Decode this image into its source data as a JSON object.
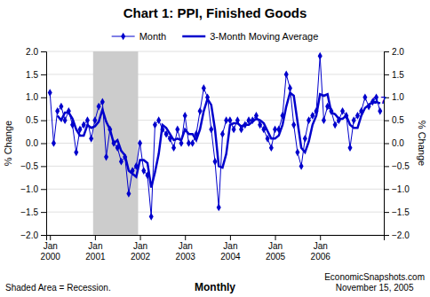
{
  "chart_data": {
    "type": "line",
    "title": "Chart 1: PPI, Finished Goods",
    "ylabel": "% Change",
    "y2label": "% Change",
    "annotation": "0.7",
    "notes": [
      "Shaded Area = Recession.",
      "Monthly",
      "EconomicSnapshots.com\nNovember 15, 2005"
    ],
    "categories": [
      "Jan\n2000",
      null,
      null,
      null,
      null,
      null,
      null,
      null,
      null,
      null,
      null,
      null,
      "Jan\n2001",
      null,
      null,
      null,
      null,
      null,
      null,
      null,
      null,
      null,
      null,
      null,
      "Jan\n2002",
      null,
      null,
      null,
      null,
      null,
      null,
      null,
      null,
      null,
      null,
      null,
      "Jan\n2003",
      null,
      null,
      null,
      null,
      null,
      null,
      null,
      null,
      null,
      null,
      null,
      "Jan\n2004",
      null,
      null,
      null,
      null,
      null,
      null,
      null,
      null,
      null,
      null,
      null,
      "Jan\n2005",
      null,
      null,
      null,
      null,
      null,
      null,
      null,
      null,
      null,
      null,
      null,
      "Jan\n2006",
      null,
      null,
      null,
      null,
      null,
      null,
      null,
      null,
      null,
      null,
      null,
      null,
      null,
      null,
      null,
      null
    ],
    "series": [
      {
        "name": "Month",
        "color": "#0000cc",
        "marker": "diamond",
        "values": [
          1.1,
          0.0,
          0.7,
          0.8,
          0.5,
          0.7,
          0.4,
          -0.2,
          0.3,
          0.4,
          0.5,
          0.1,
          0.5,
          0.8,
          0.9,
          -0.3,
          0.3,
          0.0,
          -0.1,
          -0.4,
          -0.3,
          -1.1,
          -0.6,
          -0.5,
          0.0,
          -0.6,
          -0.7,
          -1.6,
          0.4,
          0.5,
          0.3,
          0.2,
          0.1,
          -0.1,
          0.3,
          0.0,
          0.6,
          0.0,
          0.0,
          0.2,
          0.7,
          1.2,
          1.0,
          0.3,
          -0.4,
          -1.4,
          0.2,
          0.5,
          0.5,
          0.3,
          0.5,
          0.3,
          0.4,
          0.5,
          0.5,
          0.6,
          0.4,
          0.3,
          0.1,
          -0.1,
          0.3,
          0.3,
          0.6,
          1.5,
          1.2,
          0.4,
          -0.2,
          -0.5,
          0.1,
          0.5,
          0.6,
          0.7,
          1.9,
          0.5,
          0.8,
          0.7,
          0.4,
          0.5,
          0.7,
          0.6,
          -0.1,
          0.5,
          0.6,
          0.7,
          1.0,
          0.8,
          0.9,
          1.0,
          0.7
        ]
      },
      {
        "name": "3-Month Moving Average",
        "color": "#0000cc",
        "values": [
          null,
          null,
          0.6,
          0.5,
          0.6666666666666666,
          0.6666666666666666,
          0.5333333333333333,
          0.3,
          0.16666666666666666,
          0.16666666666666666,
          0.4,
          0.3333333333333333,
          0.36666666666666664,
          0.4666666666666667,
          0.7333333333333333,
          0.4666666666666667,
          0.3,
          0.0,
          0.06666666666666667,
          -0.16666666666666666,
          -0.26666666666666666,
          -0.6,
          -0.6666666666666666,
          -0.7333333333333333,
          -0.36666666666666664,
          -0.36666666666666664,
          -0.43333333333333335,
          -0.9666666666666667,
          -0.6333333333333333,
          -0.23333333333333334,
          0.4,
          0.3333333333333333,
          0.2,
          0.06666666666666667,
          0.1,
          0.06666666666666667,
          0.3,
          0.2,
          0.2,
          0.06666666666666667,
          0.3,
          0.7,
          0.9666666666666667,
          0.8333333333333334,
          0.3,
          -0.5,
          -0.5333333333333333,
          -0.23333333333333334,
          0.4,
          0.43333333333333335,
          0.43333333333333335,
          0.36666666666666664,
          0.4,
          0.4,
          0.4666666666666667,
          0.5333333333333333,
          0.5,
          0.43333333333333335,
          0.26666666666666666,
          0.1,
          0.1,
          0.16666666666666666,
          0.4,
          0.8,
          1.1,
          1.0333333333333334,
          0.4666666666666667,
          -0.1,
          -0.2,
          0.03333333333333333,
          0.4,
          0.6,
          1.0666666666666667,
          1.0333333333333334,
          1.0666666666666667,
          0.6666666666666666,
          0.6333333333333333,
          0.5333333333333333,
          0.5333333333333333,
          0.6,
          0.4,
          0.3333333333333333,
          0.3333333333333333,
          0.6,
          0.7666666666666667,
          0.8333333333333334,
          0.9,
          0.9,
          0.8666666666666667
        ]
      }
    ],
    "recession": {
      "start": 12,
      "end": 23,
      "color": "#cccccc"
    },
    "ylim": [
      -2.0,
      2.0
    ],
    "yticks": [
      {
        "value": -2.0,
        "label": "−2.0"
      },
      {
        "value": -1.5,
        "label": "−1.5"
      },
      {
        "value": -1.0,
        "label": "−1.0"
      },
      {
        "value": -0.5,
        "label": "−0.5"
      },
      {
        "value": 0.0,
        "label": "0.0"
      },
      {
        "value": 0.5,
        "label": "0.5"
      },
      {
        "value": 1.0,
        "label": "1.0"
      },
      {
        "value": 1.5,
        "label": "1.5"
      },
      {
        "value": 2.0,
        "label": "2.0"
      }
    ],
    "y2lim": [
      -2.0,
      2.0
    ],
    "y2ticks": [
      {
        "value": -2.0,
        "label": "−2.0"
      },
      {
        "value": -1.5,
        "label": "−1.5"
      },
      {
        "value": -1.0,
        "label": "−1.0"
      },
      {
        "value": -0.5,
        "label": "−0.5"
      },
      {
        "value": 0.0,
        "label": "0.0"
      },
      {
        "value": 0.5,
        "label": "0.5"
      },
      {
        "value": 1.0,
        "label": "1.0"
      },
      {
        "value": 1.5,
        "label": "1.5"
      },
      {
        "value": 2.0,
        "label": "2.0"
      }
    ],
    "grid": true,
    "legend": "top"
  }
}
